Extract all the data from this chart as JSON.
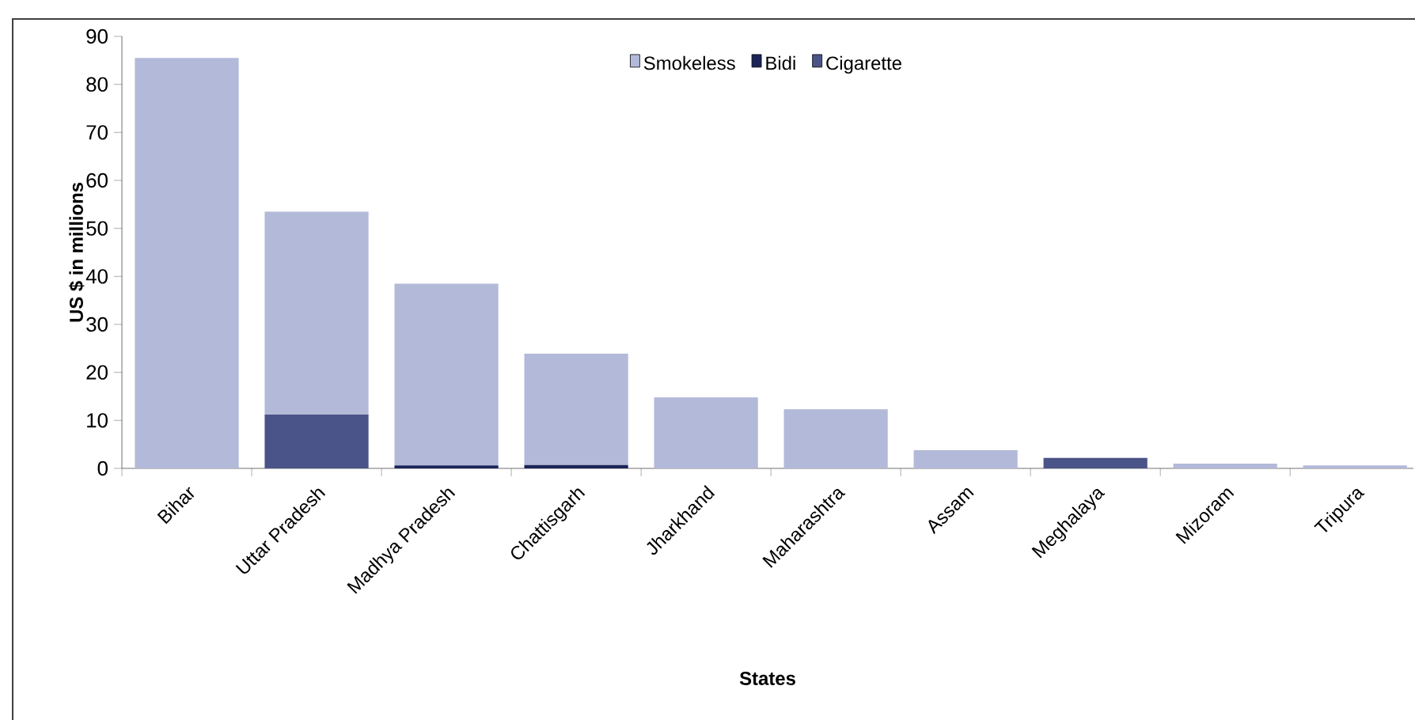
{
  "chart_data": {
    "type": "bar",
    "stacked": true,
    "xlabel": "States",
    "ylabel": "US $ in millions",
    "categories": [
      "Bihar",
      "Uttar Pradesh",
      "Madhya Pradesh",
      "Chattisgarh",
      "Jharkhand",
      "Maharashtra",
      "Assam",
      "Meghalaya",
      "Mizoram",
      "Tripura"
    ],
    "series": [
      {
        "name": "Cigarette",
        "color": "#4a5488",
        "values": [
          0,
          11.2,
          0,
          0,
          0,
          0,
          0,
          2.2,
          0,
          0
        ]
      },
      {
        "name": "Bidi",
        "color": "#1c2558",
        "values": [
          0,
          0,
          0.6,
          0.7,
          0,
          0,
          0,
          0,
          0,
          0
        ]
      },
      {
        "name": "Smokeless",
        "color": "#b3b9d8",
        "values": [
          85.5,
          42.3,
          37.9,
          23.2,
          14.8,
          12.3,
          3.8,
          0,
          1.0,
          0.6
        ]
      }
    ],
    "ylim": [
      0,
      90
    ],
    "yticks": [
      0,
      10,
      20,
      30,
      40,
      50,
      60,
      70,
      80,
      90
    ],
    "legend": "top",
    "grid": false
  }
}
